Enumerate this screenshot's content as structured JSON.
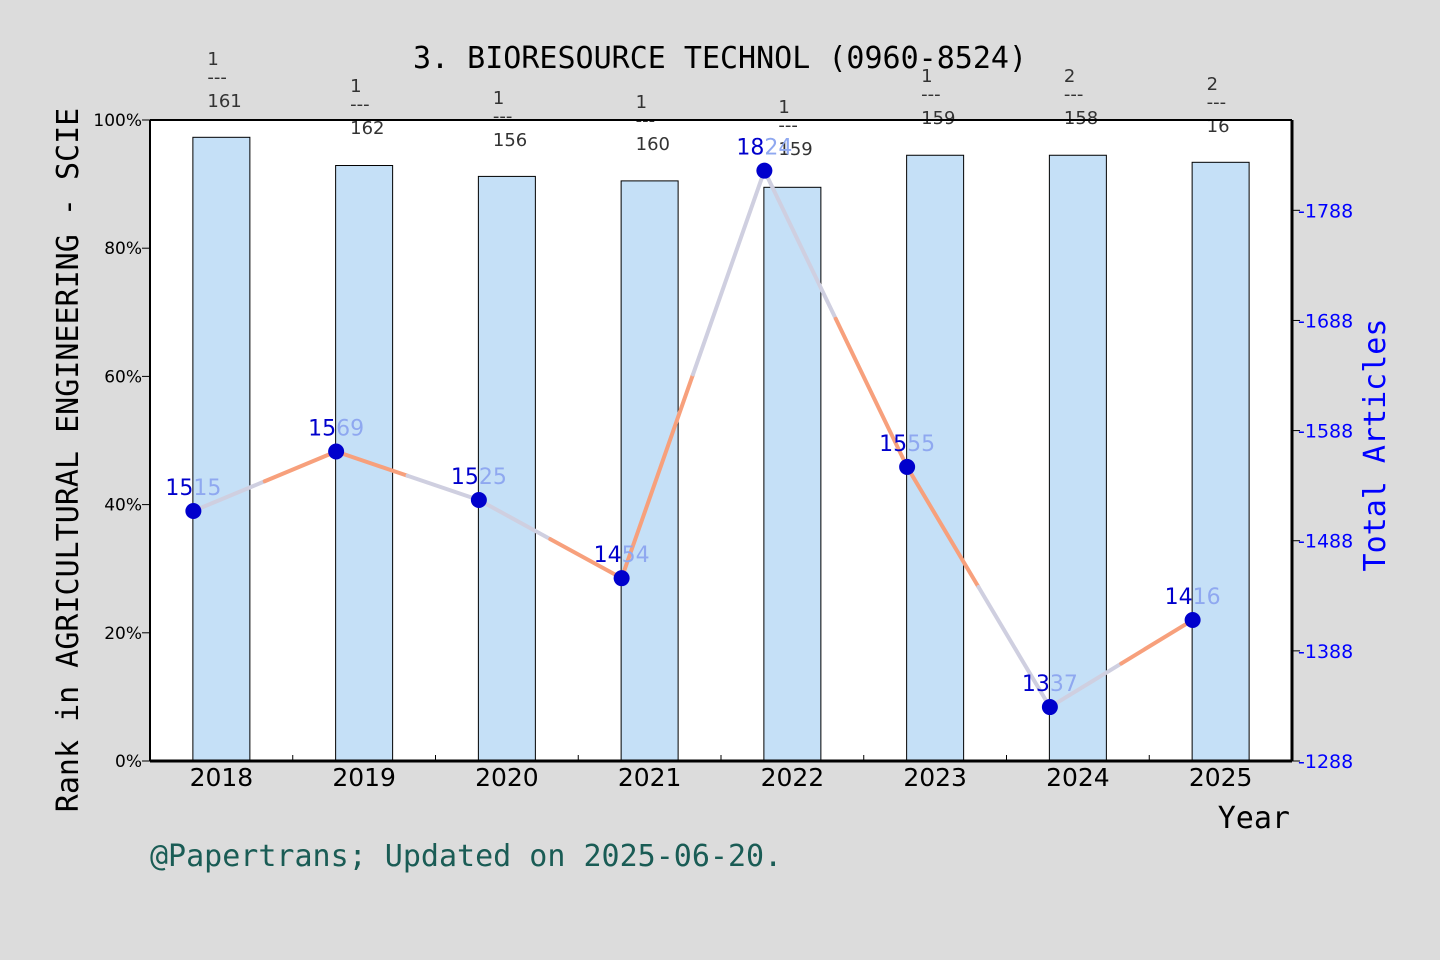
{
  "chart_data": {
    "type": "bar",
    "title": "3. BIORESOURCE TECHNOL (0960-8524)",
    "xlabel": "Year",
    "ylabel": "Rank in AGRICULTURAL ENGINEERING - SCIE",
    "y2label": "Total Articles",
    "categories": [
      "2018",
      "2019",
      "2020",
      "2021",
      "2022",
      "2023",
      "2024",
      "2025"
    ],
    "ylim": [
      0,
      100
    ],
    "yticks": [
      "0%",
      "20%",
      "40%",
      "60%",
      "80%",
      "100%"
    ],
    "y2lim": [
      1288,
      1870
    ],
    "y2ticks": [
      "1288",
      "1388",
      "1488",
      "1588",
      "1688",
      "1788"
    ],
    "grid": false,
    "bars": {
      "values": [
        97.3,
        92.9,
        91.2,
        90.5,
        89.5,
        94.5,
        94.5,
        93.4
      ],
      "fraction_num": [
        "1",
        "1",
        "1",
        "1",
        "1",
        "1",
        "2",
        "2"
      ],
      "fraction_den": [
        "161",
        "162",
        "156",
        "160",
        "159",
        "159",
        "158",
        "16"
      ],
      "fraction_sep": "---"
    },
    "line": {
      "values": [
        1515,
        1569,
        1525,
        1454,
        1824,
        1555,
        1337,
        1416
      ],
      "labels": [
        "1515",
        "1569",
        "1525",
        "1454",
        "1824",
        "1555",
        "1337",
        "1416"
      ]
    },
    "colors": {
      "bar_fill": "#c5e0f7",
      "line_segment_a": "#f7a07c",
      "line_segment_b": "#cfcfe0",
      "marker": "#0000cc",
      "right_axis": "#0000ff",
      "footer": "#1a5c55"
    }
  },
  "footer": "@Papertrans; Updated on 2025-06-20."
}
